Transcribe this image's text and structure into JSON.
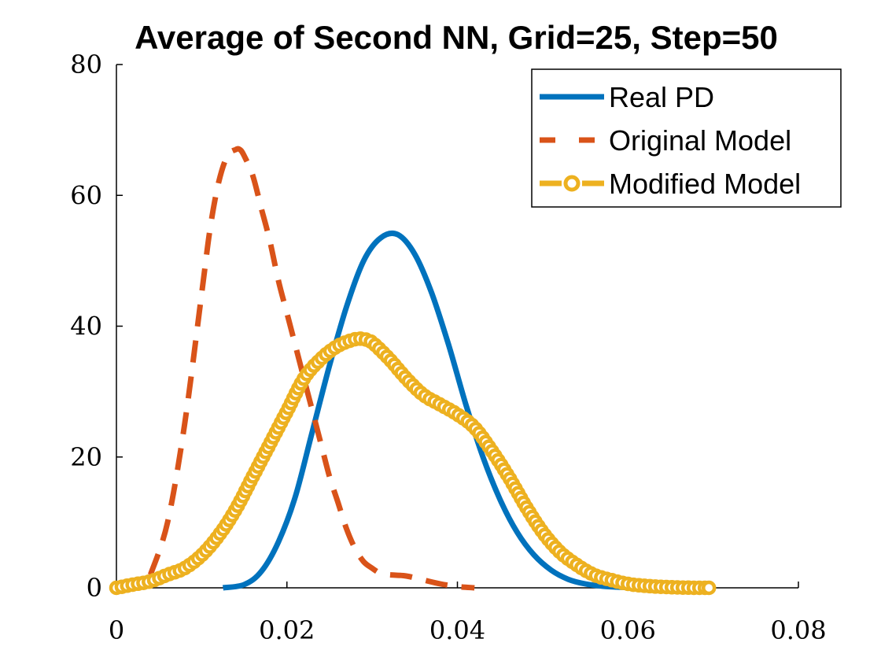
{
  "chart_data": {
    "type": "line",
    "title": "Average of Second NN, Grid=25, Step=50",
    "xlabel": "",
    "ylabel": "",
    "xlim": [
      0,
      0.08
    ],
    "ylim": [
      0,
      80
    ],
    "xticks": [
      "0",
      "0.02",
      "0.04",
      "0.06",
      "0.08"
    ],
    "yticks": [
      "0",
      "20",
      "40",
      "60",
      "80"
    ],
    "grid": false,
    "legend_position": "top-right",
    "series": [
      {
        "name": "Real PD",
        "color": "#0072BD",
        "style": "solid",
        "x": [
          0.0125,
          0.015,
          0.017,
          0.019,
          0.021,
          0.023,
          0.025,
          0.027,
          0.029,
          0.031,
          0.033,
          0.035,
          0.037,
          0.039,
          0.041,
          0.043,
          0.045,
          0.047,
          0.049,
          0.051,
          0.053,
          0.055,
          0.057,
          0.059,
          0.061
        ],
        "y": [
          0,
          0.5,
          2.5,
          7,
          14,
          24,
          34,
          43,
          50,
          53.5,
          54,
          51,
          45,
          37,
          28,
          20,
          13.5,
          8.5,
          5,
          2.7,
          1.3,
          0.6,
          0.25,
          0.1,
          0
        ]
      },
      {
        "name": "Original Model",
        "color": "#D95319",
        "style": "dashed",
        "x": [
          0.004,
          0.006,
          0.008,
          0.01,
          0.011,
          0.012,
          0.013,
          0.014,
          0.0145,
          0.015,
          0.016,
          0.017,
          0.018,
          0.019,
          0.02,
          0.021,
          0.022,
          0.023,
          0.024,
          0.025,
          0.026,
          0.027,
          0.028,
          0.029,
          0.03,
          0.031,
          0.032,
          0.034,
          0.036,
          0.038,
          0.04,
          0.042
        ],
        "y": [
          2,
          10,
          25,
          45,
          55,
          62,
          66,
          67,
          67,
          66,
          63,
          58,
          53,
          47,
          42,
          37,
          32,
          27,
          22,
          17,
          13,
          9,
          6,
          4,
          3,
          2.2,
          2,
          1.8,
          1.2,
          0.6,
          0.2,
          0
        ]
      },
      {
        "name": "Modified Model",
        "color": "#EDB120",
        "style": "dashed-circle",
        "x": [
          0,
          0.002,
          0.004,
          0.006,
          0.008,
          0.01,
          0.012,
          0.014,
          0.016,
          0.018,
          0.02,
          0.022,
          0.024,
          0.026,
          0.028,
          0.029,
          0.03,
          0.032,
          0.034,
          0.036,
          0.038,
          0.04,
          0.042,
          0.044,
          0.046,
          0.048,
          0.05,
          0.052,
          0.054,
          0.056,
          0.058,
          0.06,
          0.062,
          0.064,
          0.066,
          0.068,
          0.0695
        ],
        "y": [
          0,
          0.5,
          1,
          2,
          3,
          5,
          8,
          12,
          17,
          22,
          27,
          32,
          35,
          37,
          38,
          38,
          37.5,
          35,
          32,
          29.5,
          28,
          26.5,
          24.5,
          21,
          17,
          12.5,
          8.5,
          5.5,
          3.5,
          2,
          1.2,
          0.6,
          0.3,
          0.15,
          0.05,
          0,
          0
        ]
      }
    ]
  }
}
